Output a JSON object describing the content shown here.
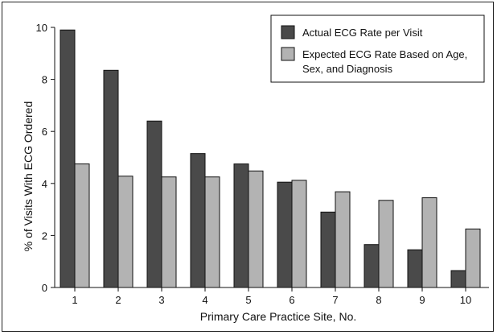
{
  "chart_data": {
    "type": "bar",
    "title": "",
    "xlabel": "Primary Care Practice Site, No.",
    "ylabel": "% of Visits With ECG Ordered",
    "categories": [
      "1",
      "2",
      "3",
      "4",
      "5",
      "6",
      "7",
      "8",
      "9",
      "10"
    ],
    "ylim": [
      0,
      10
    ],
    "yticks": [
      "0",
      "2",
      "4",
      "6",
      "8",
      "10"
    ],
    "grid": false,
    "legend_position": "top-right",
    "series": [
      {
        "name": "Actual ECG Rate per Visit",
        "color": "#4a4a4a",
        "values": [
          9.9,
          8.35,
          6.4,
          5.15,
          4.75,
          4.05,
          2.9,
          1.65,
          1.45,
          0.65
        ]
      },
      {
        "name": "Expected ECG Rate Based on Age, Sex, and Diagnosis",
        "color": "#b3b3b3",
        "legend_lines": [
          "Expected ECG Rate Based on Age,",
          "Sex, and Diagnosis"
        ],
        "values": [
          4.75,
          4.28,
          4.25,
          4.25,
          4.48,
          4.12,
          3.68,
          3.35,
          3.45,
          2.25
        ]
      }
    ]
  }
}
